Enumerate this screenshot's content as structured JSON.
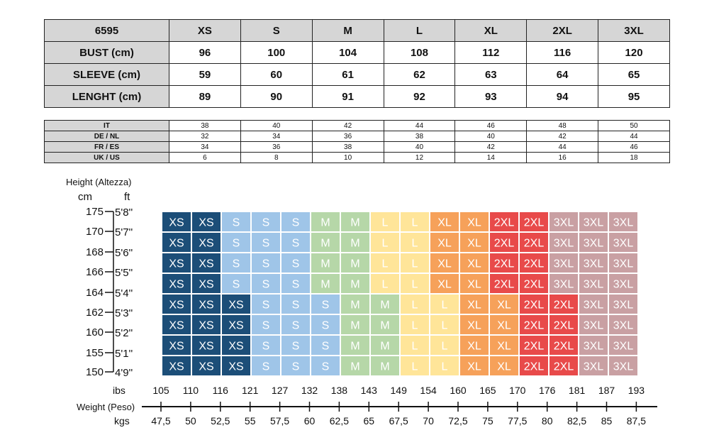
{
  "size_table": {
    "header": [
      "6595",
      "XS",
      "S",
      "M",
      "L",
      "XL",
      "2XL",
      "3XL"
    ],
    "rows": [
      {
        "label": "BUST (cm)",
        "values": [
          "96",
          "100",
          "104",
          "108",
          "112",
          "116",
          "120"
        ]
      },
      {
        "label": "SLEEVE (cm)",
        "values": [
          "59",
          "60",
          "61",
          "62",
          "63",
          "64",
          "65"
        ]
      },
      {
        "label": "LENGHT (cm)",
        "values": [
          "89",
          "90",
          "91",
          "92",
          "93",
          "94",
          "95"
        ]
      }
    ]
  },
  "conversion_table": {
    "rows": [
      {
        "label": "IT",
        "values": [
          "38",
          "40",
          "42",
          "44",
          "46",
          "48",
          "50"
        ]
      },
      {
        "label": "DE / NL",
        "values": [
          "32",
          "34",
          "36",
          "38",
          "40",
          "42",
          "44"
        ]
      },
      {
        "label": "FR / ES",
        "values": [
          "34",
          "36",
          "38",
          "40",
          "42",
          "44",
          "46"
        ]
      },
      {
        "label": "UK / US",
        "values": [
          "6",
          "8",
          "10",
          "12",
          "14",
          "16",
          "18"
        ]
      }
    ]
  },
  "chart_data": {
    "type": "heatmap",
    "height_title": "Height (Altezza)",
    "cm_label": "cm",
    "ft_label": "ft",
    "height_cm": [
      "175",
      "170",
      "168",
      "166",
      "164",
      "162",
      "160",
      "155",
      "150"
    ],
    "height_ft": [
      "5'8''",
      "5'7''",
      "5'6''",
      "5'5''",
      "5'4''",
      "5'3''",
      "5'2''",
      "5'1''",
      "4'9''"
    ],
    "weight_title": "Weight (Peso)",
    "lbs_label": "ibs",
    "kgs_label": "kgs",
    "weight_lbs": [
      "105",
      "110",
      "116",
      "121",
      "127",
      "132",
      "138",
      "143",
      "149",
      "154",
      "160",
      "165",
      "170",
      "176",
      "181",
      "187",
      "193"
    ],
    "weight_kgs": [
      "47,5",
      "50",
      "52,5",
      "55",
      "57,5",
      "60",
      "62,5",
      "65",
      "67,5",
      "70",
      "72,5",
      "75",
      "77,5",
      "80",
      "82,5",
      "85",
      "87,5"
    ],
    "size_colors": {
      "XS": "#1c4e78",
      "S": "#9fc5e8",
      "M": "#b6d7a8",
      "L": "#ffe599",
      "XL": "#f6a15a",
      "2XL": "#e84a4a",
      "3XL": "#c9a0a3"
    },
    "upper_rows": [
      [
        "XS",
        "XS",
        "S",
        "S",
        "S",
        "M",
        "M",
        "L",
        "L",
        "XL",
        "XL",
        "2XL",
        "2XL",
        "3XL",
        "3XL",
        "3XL"
      ],
      [
        "XS",
        "XS",
        "S",
        "S",
        "S",
        "M",
        "M",
        "L",
        "L",
        "XL",
        "XL",
        "2XL",
        "2XL",
        "3XL",
        "3XL",
        "3XL"
      ],
      [
        "XS",
        "XS",
        "S",
        "S",
        "S",
        "M",
        "M",
        "L",
        "L",
        "XL",
        "XL",
        "2XL",
        "2XL",
        "3XL",
        "3XL",
        "3XL"
      ],
      [
        "XS",
        "XS",
        "S",
        "S",
        "S",
        "M",
        "M",
        "L",
        "L",
        "XL",
        "XL",
        "2XL",
        "2XL",
        "3XL",
        "3XL",
        "3XL"
      ]
    ],
    "lower_rows": [
      [
        "XS",
        "XS",
        "XS",
        "S",
        "S",
        "S",
        "M",
        "M",
        "L",
        "L",
        "XL",
        "XL",
        "2XL",
        "2XL",
        "3XL",
        "3XL"
      ],
      [
        "XS",
        "XS",
        "XS",
        "S",
        "S",
        "S",
        "M",
        "M",
        "L",
        "L",
        "XL",
        "XL",
        "2XL",
        "2XL",
        "3XL",
        "3XL"
      ],
      [
        "XS",
        "XS",
        "XS",
        "S",
        "S",
        "S",
        "M",
        "M",
        "L",
        "L",
        "XL",
        "XL",
        "2XL",
        "2XL",
        "3XL",
        "3XL"
      ],
      [
        "XS",
        "XS",
        "XS",
        "S",
        "S",
        "S",
        "M",
        "M",
        "L",
        "L",
        "XL",
        "XL",
        "2XL",
        "2XL",
        "3XL",
        "3XL"
      ]
    ]
  }
}
